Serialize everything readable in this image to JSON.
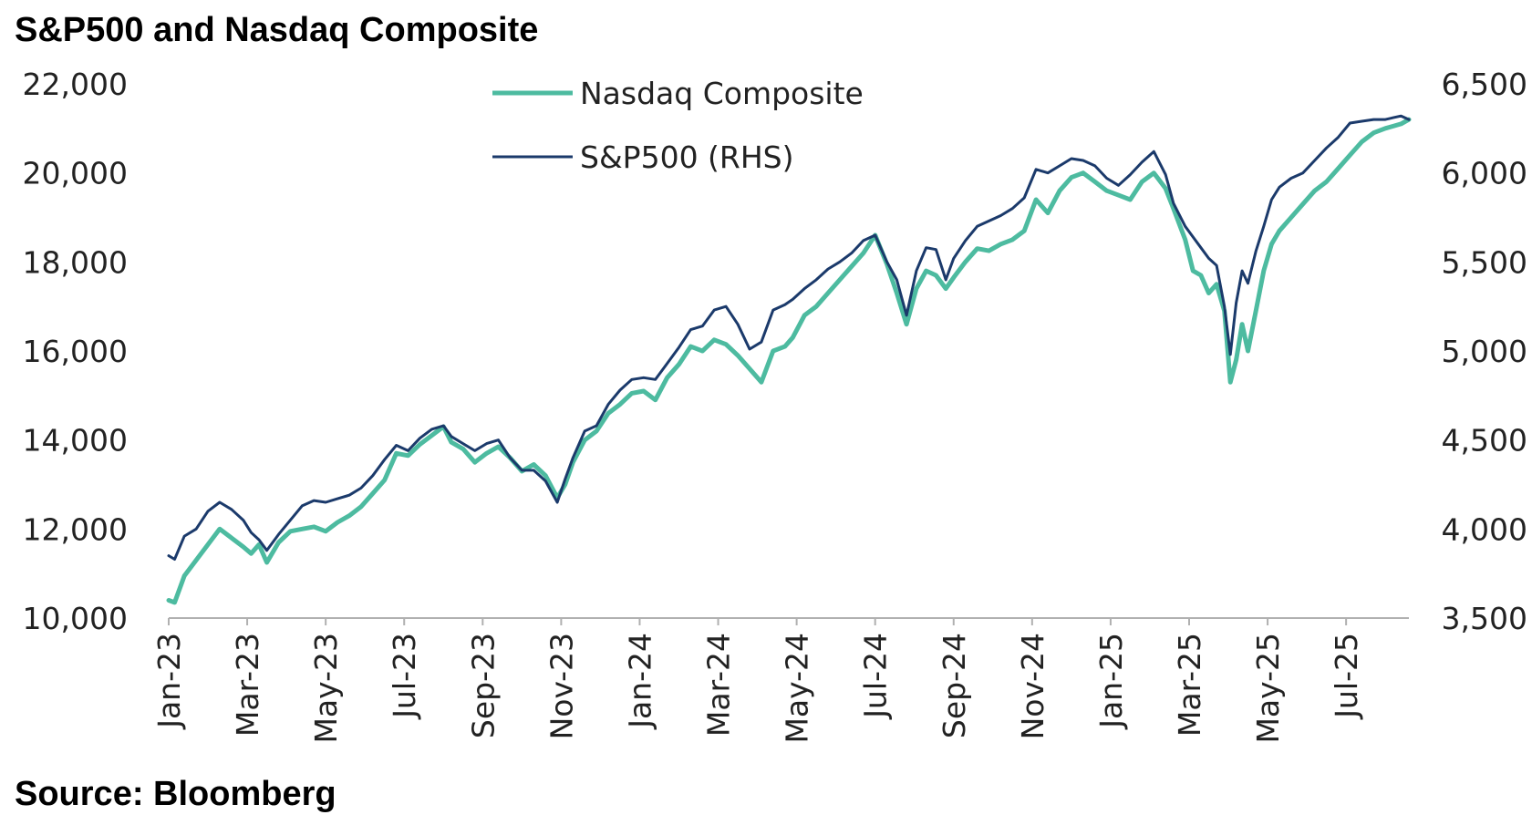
{
  "title": "S&P500 and Nasdaq Composite",
  "source": "Source: Bloomberg",
  "chart_data": {
    "type": "line",
    "title": "S&P500 and Nasdaq Composite",
    "source": "Source: Bloomberg",
    "left_axis": {
      "ylim": [
        10000,
        22000
      ],
      "ticks": [
        "10,000",
        "12,000",
        "14,000",
        "16,000",
        "18,000",
        "20,000",
        "22,000"
      ],
      "tick_values": [
        10000,
        12000,
        14000,
        16000,
        18000,
        20000,
        22000
      ]
    },
    "right_axis": {
      "ylim": [
        3500,
        6500
      ],
      "ticks": [
        "3,500",
        "4,000",
        "4,500",
        "5,000",
        "5,500",
        "6,000",
        "6,500"
      ],
      "tick_values": [
        3500,
        4000,
        4500,
        5000,
        5500,
        6000,
        6500
      ]
    },
    "x_ticks": [
      "Jan-23",
      "Mar-23",
      "May-23",
      "Jul-23",
      "Sep-23",
      "Nov-23",
      "Jan-24",
      "Mar-24",
      "May-24",
      "Jul-24",
      "Sep-24",
      "Nov-24",
      "Jan-25",
      "Mar-25",
      "May-25",
      "Jul-25"
    ],
    "x_tick_months": [
      0,
      2,
      4,
      6,
      8,
      10,
      12,
      14,
      16,
      18,
      20,
      22,
      24,
      26,
      28,
      30
    ],
    "x_range_months": [
      0,
      31.6
    ],
    "grid": false,
    "legend_placement": "top-center",
    "series": [
      {
        "name": "Nasdaq Composite",
        "axis": "left",
        "color": "#4dbba0",
        "x_months": [
          0.0,
          0.15,
          0.4,
          0.7,
          1.0,
          1.3,
          1.6,
          1.9,
          2.1,
          2.3,
          2.5,
          2.8,
          3.1,
          3.4,
          3.7,
          4.0,
          4.3,
          4.6,
          4.9,
          5.2,
          5.5,
          5.8,
          6.1,
          6.4,
          6.7,
          7.0,
          7.2,
          7.5,
          7.8,
          8.1,
          8.4,
          8.7,
          9.0,
          9.3,
          9.6,
          9.9,
          10.1,
          10.3,
          10.6,
          10.9,
          11.2,
          11.5,
          11.8,
          12.1,
          12.4,
          12.7,
          13.0,
          13.3,
          13.6,
          13.9,
          14.2,
          14.5,
          14.8,
          15.1,
          15.4,
          15.7,
          15.9,
          16.2,
          16.5,
          16.8,
          17.1,
          17.4,
          17.7,
          18.0,
          18.3,
          18.55,
          18.8,
          19.05,
          19.3,
          19.55,
          19.8,
          20.0,
          20.3,
          20.6,
          20.9,
          21.2,
          21.5,
          21.8,
          22.1,
          22.4,
          22.7,
          23.0,
          23.3,
          23.6,
          23.9,
          24.2,
          24.5,
          24.8,
          25.1,
          25.4,
          25.6,
          25.9,
          26.1,
          26.3,
          26.5,
          26.7,
          26.9,
          27.05,
          27.2,
          27.35,
          27.5,
          27.7,
          27.9,
          28.1,
          28.3,
          28.6,
          28.9,
          29.2,
          29.5,
          29.8,
          30.1,
          30.4,
          30.7,
          31.0,
          31.2,
          31.4,
          31.6
        ],
        "values": [
          10400,
          10350,
          10950,
          11300,
          11650,
          12000,
          11800,
          11600,
          11450,
          11650,
          11250,
          11700,
          11950,
          12000,
          12050,
          11950,
          12150,
          12300,
          12500,
          12800,
          13100,
          13700,
          13650,
          13900,
          14100,
          14300,
          13950,
          13800,
          13500,
          13700,
          13850,
          13600,
          13300,
          13450,
          13200,
          12700,
          13000,
          13500,
          14000,
          14200,
          14600,
          14800,
          15050,
          15100,
          14900,
          15400,
          15700,
          16100,
          16000,
          16250,
          16150,
          15900,
          15600,
          15300,
          16000,
          16100,
          16300,
          16800,
          17000,
          17300,
          17600,
          17900,
          18200,
          18600,
          17950,
          17300,
          16600,
          17400,
          17800,
          17700,
          17400,
          17650,
          18000,
          18300,
          18250,
          18400,
          18500,
          18700,
          19400,
          19100,
          19600,
          19900,
          20000,
          19800,
          19600,
          19500,
          19400,
          19800,
          20000,
          19650,
          19200,
          18500,
          17800,
          17700,
          17300,
          17500,
          16900,
          15300,
          15800,
          16600,
          16000,
          16900,
          17800,
          18400,
          18700,
          19000,
          19300,
          19600,
          19800,
          20100,
          20400,
          20700,
          20900,
          21000,
          21050,
          21100,
          21200
        ]
      },
      {
        "name": "S&P500 (RHS)",
        "axis": "right",
        "color": "#1b3a6b",
        "x_months": [
          0.0,
          0.15,
          0.4,
          0.7,
          1.0,
          1.3,
          1.6,
          1.9,
          2.1,
          2.3,
          2.5,
          2.8,
          3.1,
          3.4,
          3.7,
          4.0,
          4.3,
          4.6,
          4.9,
          5.2,
          5.5,
          5.8,
          6.1,
          6.4,
          6.7,
          7.0,
          7.2,
          7.5,
          7.8,
          8.1,
          8.4,
          8.7,
          9.0,
          9.3,
          9.6,
          9.9,
          10.1,
          10.3,
          10.6,
          10.9,
          11.2,
          11.5,
          11.8,
          12.1,
          12.4,
          12.7,
          13.0,
          13.3,
          13.6,
          13.9,
          14.2,
          14.5,
          14.8,
          15.1,
          15.4,
          15.7,
          15.9,
          16.2,
          16.5,
          16.8,
          17.1,
          17.4,
          17.7,
          18.0,
          18.3,
          18.55,
          18.8,
          19.05,
          19.3,
          19.55,
          19.8,
          20.0,
          20.3,
          20.6,
          20.9,
          21.2,
          21.5,
          21.8,
          22.1,
          22.4,
          22.7,
          23.0,
          23.3,
          23.6,
          23.9,
          24.2,
          24.5,
          24.8,
          25.1,
          25.4,
          25.6,
          25.9,
          26.1,
          26.3,
          26.5,
          26.7,
          26.9,
          27.05,
          27.2,
          27.35,
          27.5,
          27.7,
          27.9,
          28.1,
          28.3,
          28.6,
          28.9,
          29.2,
          29.5,
          29.8,
          30.1,
          30.4,
          30.7,
          31.0,
          31.2,
          31.4,
          31.6
        ],
        "values": [
          3850,
          3830,
          3960,
          4000,
          4100,
          4150,
          4110,
          4050,
          3980,
          3940,
          3880,
          3970,
          4050,
          4130,
          4160,
          4150,
          4170,
          4190,
          4230,
          4300,
          4390,
          4470,
          4440,
          4510,
          4560,
          4580,
          4520,
          4480,
          4440,
          4480,
          4500,
          4400,
          4330,
          4330,
          4270,
          4150,
          4280,
          4400,
          4550,
          4580,
          4700,
          4780,
          4840,
          4850,
          4840,
          4930,
          5020,
          5120,
          5140,
          5230,
          5250,
          5150,
          5010,
          5050,
          5230,
          5260,
          5290,
          5350,
          5400,
          5460,
          5500,
          5550,
          5620,
          5650,
          5500,
          5400,
          5200,
          5450,
          5580,
          5570,
          5400,
          5520,
          5620,
          5700,
          5730,
          5760,
          5800,
          5860,
          6020,
          6000,
          6040,
          6080,
          6070,
          6040,
          5970,
          5930,
          5990,
          6060,
          6120,
          5990,
          5830,
          5700,
          5640,
          5580,
          5520,
          5480,
          5250,
          4980,
          5270,
          5450,
          5380,
          5560,
          5700,
          5850,
          5920,
          5970,
          6000,
          6070,
          6140,
          6200,
          6280,
          6290,
          6300,
          6300,
          6310,
          6320,
          6300
        ]
      }
    ]
  }
}
